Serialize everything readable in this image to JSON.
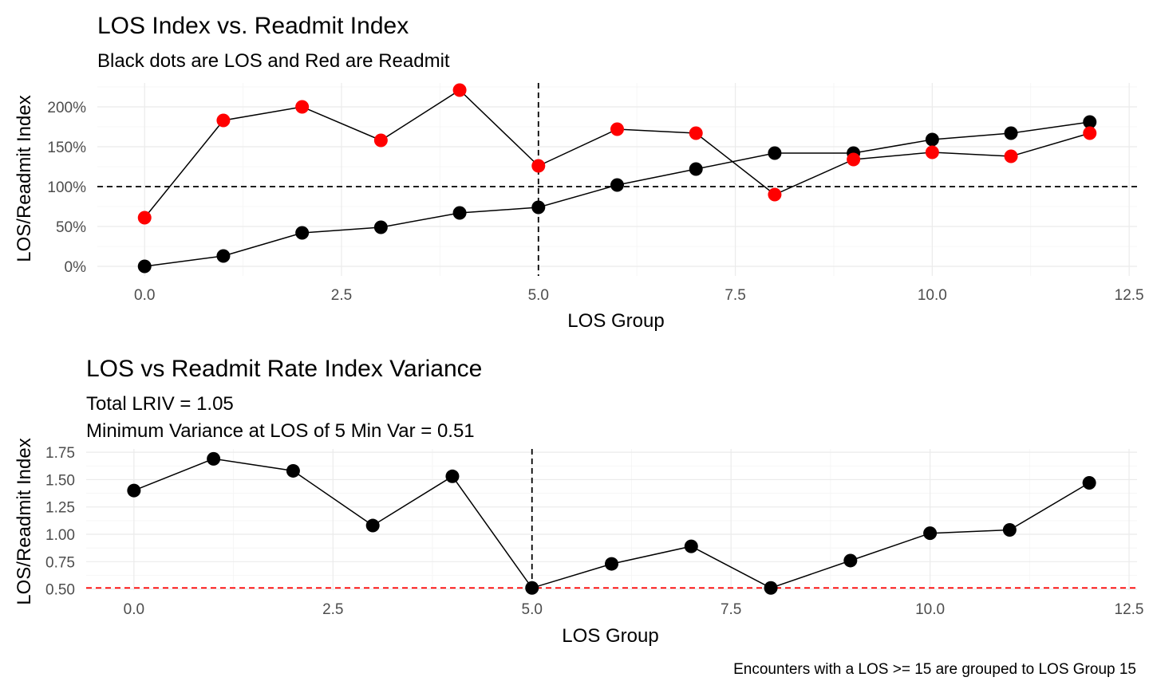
{
  "chart_data": [
    {
      "type": "line",
      "title": "LOS Index vs. Readmit Index",
      "subtitle": "Black dots are LOS and Red are Readmit",
      "xlabel": "LOS Group",
      "ylabel": "LOS/Readmit Index",
      "xlim": [
        -0.6,
        12.6
      ],
      "ylim": [
        -0.12,
        2.3
      ],
      "x_ticks": [
        {
          "value": 0,
          "label": "0.0"
        },
        {
          "value": 2.5,
          "label": "2.5"
        },
        {
          "value": 5,
          "label": "5.0"
        },
        {
          "value": 7.5,
          "label": "7.5"
        },
        {
          "value": 10,
          "label": "10.0"
        },
        {
          "value": 12.5,
          "label": "12.5"
        }
      ],
      "y_ticks": [
        {
          "value": 0,
          "label": "0%"
        },
        {
          "value": 0.5,
          "label": "50%"
        },
        {
          "value": 1.0,
          "label": "100%"
        },
        {
          "value": 1.5,
          "label": "150%"
        },
        {
          "value": 2.0,
          "label": "200%"
        }
      ],
      "hline": 1.0,
      "vline": 5,
      "series": [
        {
          "color": "#000000",
          "x": [
            0,
            1,
            2,
            3,
            4,
            5,
            6,
            7,
            8,
            9,
            10,
            11,
            12
          ],
          "values": [
            0.0,
            0.13,
            0.42,
            0.49,
            0.67,
            0.74,
            1.02,
            1.22,
            1.42,
            1.42,
            1.59,
            1.67,
            1.81
          ]
        },
        {
          "color": "#ff0000",
          "x": [
            0,
            1,
            2,
            3,
            4,
            5,
            6,
            7,
            8,
            9,
            10,
            11,
            12
          ],
          "values": [
            0.61,
            1.83,
            2.0,
            1.58,
            2.21,
            1.26,
            1.72,
            1.67,
            0.9,
            1.34,
            1.43,
            1.38,
            1.67
          ]
        }
      ]
    },
    {
      "type": "line",
      "title": "LOS vs Readmit Rate Index Variance",
      "subtitle_lines": [
        "Total LRIV = 1.05",
        "Minimum Variance at LOS of 5 Min Var = 0.51"
      ],
      "xlabel": "LOS Group",
      "ylabel": "LOS/Readmit Index",
      "xlim": [
        -0.6,
        12.6
      ],
      "ylim": [
        0.49,
        1.78
      ],
      "x_ticks": [
        {
          "value": 0,
          "label": "0.0"
        },
        {
          "value": 2.5,
          "label": "2.5"
        },
        {
          "value": 5,
          "label": "5.0"
        },
        {
          "value": 7.5,
          "label": "7.5"
        },
        {
          "value": 10,
          "label": "10.0"
        },
        {
          "value": 12.5,
          "label": "12.5"
        }
      ],
      "y_ticks": [
        {
          "value": 0.5,
          "label": "0.50"
        },
        {
          "value": 0.75,
          "label": "0.75"
        },
        {
          "value": 1.0,
          "label": "1.00"
        },
        {
          "value": 1.25,
          "label": "1.25"
        },
        {
          "value": 1.5,
          "label": "1.50"
        },
        {
          "value": 1.75,
          "label": "1.75"
        }
      ],
      "hline": 0.51,
      "vline": 5,
      "series": [
        {
          "color": "#000000",
          "x": [
            0,
            1,
            2,
            3,
            4,
            5,
            6,
            7,
            8,
            9,
            10,
            11,
            12
          ],
          "values": [
            1.4,
            1.69,
            1.58,
            1.08,
            1.53,
            0.51,
            0.73,
            0.89,
            0.51,
            0.76,
            1.01,
            1.04,
            1.47
          ]
        }
      ]
    }
  ],
  "caption": "Encounters with a LOS >= 15 are grouped to LOS Group 15"
}
